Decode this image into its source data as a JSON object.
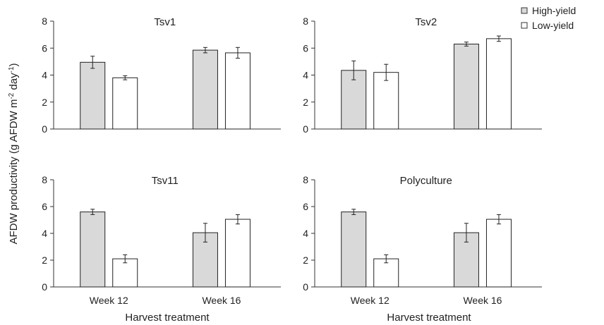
{
  "figure": {
    "ylabel": "AFDW productivity (g AFDW m",
    "ylabel_sup1": "-2",
    "ylabel_mid": " day",
    "ylabel_sup2": "-1",
    "ylabel_end": ")",
    "xlabel": "Harvest treatment"
  },
  "legend": {
    "placement": "top-right",
    "items": [
      {
        "label": "High-yield",
        "color": "#d9d9d9"
      },
      {
        "label": "Low-yield",
        "color": "#ffffff"
      }
    ]
  },
  "chart_data": [
    {
      "type": "bar",
      "title": "Tsv1",
      "categories": [
        "Week 12",
        "Week 16"
      ],
      "ylim": [
        0,
        8
      ],
      "yticks": [
        0,
        2,
        4,
        6,
        8
      ],
      "series": [
        {
          "name": "High-yield",
          "color": "#d9d9d9",
          "values": [
            4.95,
            5.85
          ],
          "errors": [
            0.45,
            0.2
          ]
        },
        {
          "name": "Low-yield",
          "color": "#ffffff",
          "values": [
            3.8,
            5.65
          ],
          "errors": [
            0.15,
            0.4
          ]
        }
      ]
    },
    {
      "type": "bar",
      "title": "Tsv2",
      "categories": [
        "Week 12",
        "Week 16"
      ],
      "ylim": [
        0,
        8
      ],
      "yticks": [
        0,
        2,
        4,
        6,
        8
      ],
      "series": [
        {
          "name": "High-yield",
          "color": "#d9d9d9",
          "values": [
            4.35,
            6.3
          ],
          "errors": [
            0.7,
            0.15
          ]
        },
        {
          "name": "Low-yield",
          "color": "#ffffff",
          "values": [
            4.2,
            6.7
          ],
          "errors": [
            0.6,
            0.2
          ]
        }
      ]
    },
    {
      "type": "bar",
      "title": "Tsv11",
      "categories": [
        "Week 12",
        "Week 16"
      ],
      "ylim": [
        0,
        8
      ],
      "yticks": [
        0,
        2,
        4,
        6,
        8
      ],
      "series": [
        {
          "name": "High-yield",
          "color": "#d9d9d9",
          "values": [
            5.6,
            4.05
          ],
          "errors": [
            0.2,
            0.7
          ]
        },
        {
          "name": "Low-yield",
          "color": "#ffffff",
          "values": [
            2.1,
            5.05
          ],
          "errors": [
            0.3,
            0.35
          ]
        }
      ]
    },
    {
      "type": "bar",
      "title": "Polyculture",
      "categories": [
        "Week 12",
        "Week 16"
      ],
      "ylim": [
        0,
        8
      ],
      "yticks": [
        0,
        2,
        4,
        6,
        8
      ],
      "series": [
        {
          "name": "High-yield",
          "color": "#d9d9d9",
          "values": [
            5.6,
            4.05
          ],
          "errors": [
            0.2,
            0.7
          ]
        },
        {
          "name": "Low-yield",
          "color": "#ffffff",
          "values": [
            2.1,
            5.05
          ],
          "errors": [
            0.3,
            0.35
          ]
        }
      ]
    }
  ]
}
